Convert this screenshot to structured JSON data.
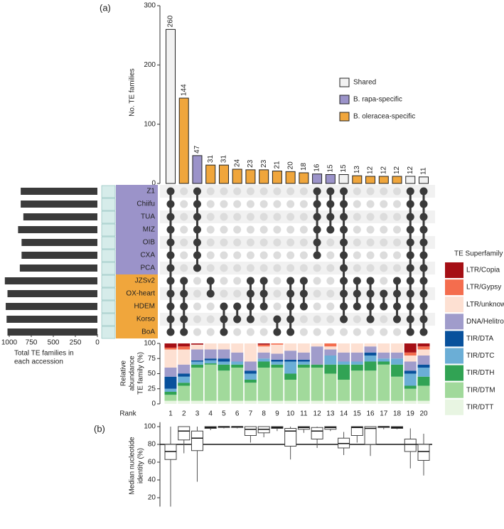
{
  "panel_labels": [
    "(a)",
    "(b)"
  ],
  "chart_data": [
    {
      "type": "bar",
      "ylabel": "No. TE families",
      "categories": [
        "1",
        "2",
        "3",
        "4",
        "5",
        "6",
        "7",
        "8",
        "9",
        "10",
        "11",
        "12",
        "13",
        "14",
        "15",
        "16",
        "17",
        "18",
        "19",
        "20"
      ],
      "values": [
        260,
        144,
        47,
        31,
        31,
        24,
        23,
        23,
        21,
        20,
        18,
        16,
        15,
        15,
        13,
        12,
        12,
        12,
        12,
        11
      ],
      "colors": [
        "#f2f2f2",
        "#f0a63c",
        "#9b93c9",
        "#f0a63c",
        "#f0a63c",
        "#f0a63c",
        "#f0a63c",
        "#f0a63c",
        "#f0a63c",
        "#f0a63c",
        "#f0a63c",
        "#9b93c9",
        "#9b93c9",
        "#f2f2f2",
        "#f0a63c",
        "#f0a63c",
        "#f0a63c",
        "#f0a63c",
        "#f2f2f2",
        "#f2f2f2"
      ],
      "ylim": [
        0,
        300
      ],
      "yticks": [
        0,
        100,
        200,
        300
      ],
      "legend": [
        {
          "name": "Shared",
          "color": "#f2f2f2"
        },
        {
          "name": "B. rapa-specific",
          "color": "#9b93c9"
        },
        {
          "name": "B. oleracea-specific",
          "color": "#f0a63c"
        }
      ]
    },
    {
      "type": "barh",
      "xlabel": [
        "Total TE families in",
        "each accession"
      ],
      "categories": [
        "Z1",
        "Chiifu",
        "TUA",
        "MIZ",
        "OIB",
        "CXA",
        "PCA",
        "JZSv2",
        "OX-heart",
        "HDEM",
        "Korso",
        "BoA"
      ],
      "values": [
        870,
        870,
        840,
        900,
        860,
        860,
        880,
        1050,
        1020,
        1040,
        1030,
        1020
      ],
      "label_colors": [
        "#9b93c9",
        "#9b93c9",
        "#9b93c9",
        "#9b93c9",
        "#9b93c9",
        "#9b93c9",
        "#9b93c9",
        "#f0a63c",
        "#f0a63c",
        "#f0a63c",
        "#f0a63c",
        "#f0a63c"
      ],
      "color": "#3a3a3a",
      "xlim": [
        0,
        1000
      ],
      "xticks": [
        1000,
        750,
        500,
        250,
        0
      ],
      "reversed": true
    },
    {
      "type": "matrix",
      "on_color": "#3a3a3a",
      "off_color": "#dcdcdc",
      "membership": [
        [
          1,
          1,
          1,
          1,
          1,
          1,
          1,
          1,
          1,
          1,
          1,
          1
        ],
        [
          0,
          0,
          0,
          0,
          0,
          0,
          0,
          1,
          1,
          1,
          1,
          1
        ],
        [
          1,
          1,
          1,
          1,
          1,
          1,
          1,
          0,
          0,
          0,
          0,
          0
        ],
        [
          0,
          0,
          0,
          0,
          0,
          0,
          0,
          1,
          1,
          0,
          0,
          0
        ],
        [
          0,
          0,
          0,
          0,
          0,
          0,
          0,
          0,
          0,
          1,
          1,
          1
        ],
        [
          0,
          0,
          0,
          0,
          0,
          0,
          0,
          0,
          0,
          1,
          1,
          0
        ],
        [
          0,
          0,
          0,
          0,
          0,
          0,
          0,
          1,
          1,
          1,
          1,
          0
        ],
        [
          0,
          0,
          0,
          0,
          0,
          0,
          0,
          1,
          1,
          1,
          0,
          0
        ],
        [
          0,
          0,
          0,
          0,
          0,
          0,
          0,
          0,
          0,
          0,
          1,
          1
        ],
        [
          0,
          0,
          0,
          0,
          0,
          0,
          0,
          1,
          1,
          1,
          1,
          1
        ],
        [
          0,
          0,
          0,
          0,
          0,
          0,
          0,
          1,
          1,
          1,
          0,
          0
        ],
        [
          1,
          1,
          1,
          1,
          1,
          1,
          0,
          0,
          0,
          0,
          0,
          0
        ],
        [
          1,
          1,
          1,
          1,
          0,
          0,
          0,
          0,
          0,
          0,
          0,
          0
        ],
        [
          1,
          1,
          1,
          1,
          1,
          1,
          1,
          1,
          1,
          1,
          1,
          0
        ],
        [
          0,
          0,
          0,
          0,
          0,
          0,
          0,
          1,
          1,
          1,
          0,
          0
        ],
        [
          0,
          0,
          0,
          0,
          0,
          0,
          0,
          1,
          1,
          1,
          1,
          0
        ],
        [
          0,
          0,
          0,
          0,
          0,
          0,
          0,
          0,
          1,
          1,
          0,
          0
        ],
        [
          0,
          0,
          0,
          0,
          0,
          0,
          0,
          1,
          1,
          1,
          1,
          0
        ],
        [
          1,
          1,
          1,
          1,
          1,
          1,
          1,
          1,
          1,
          1,
          1,
          1
        ],
        [
          1,
          1,
          1,
          1,
          1,
          1,
          1,
          1,
          1,
          1,
          1,
          1
        ]
      ]
    },
    {
      "type": "stacked_bar",
      "ylabel": [
        "Relative",
        "abundance",
        "TE family (%)"
      ],
      "xlabel": "Rank",
      "legend_title": "TE Superfamily",
      "categories": [
        "1",
        "2",
        "3",
        "4",
        "5",
        "6",
        "7",
        "8",
        "9",
        "10",
        "11",
        "12",
        "13",
        "14",
        "15",
        "16",
        "17",
        "18",
        "19",
        "20"
      ],
      "ylim": [
        0,
        100
      ],
      "yticks": [
        0,
        25,
        50,
        75,
        100
      ],
      "series": [
        {
          "name": "LTR/Copia",
          "color": "#a50f15",
          "values": [
            7,
            5,
            2,
            0,
            0,
            0,
            0,
            2,
            0,
            0,
            0,
            0,
            0,
            0,
            0,
            0,
            0,
            0,
            15,
            5
          ]
        },
        {
          "name": "LTR/Gypsy",
          "color": "#f46d4e",
          "values": [
            3,
            5,
            0,
            0,
            0,
            0,
            0,
            3,
            2,
            0,
            0,
            0,
            5,
            0,
            0,
            0,
            0,
            0,
            5,
            5
          ]
        },
        {
          "name": "LTR/unknown",
          "color": "#fde0d2",
          "values": [
            30,
            25,
            8,
            10,
            10,
            15,
            30,
            10,
            15,
            12,
            15,
            5,
            5,
            15,
            15,
            5,
            15,
            15,
            10,
            10
          ]
        },
        {
          "name": "DNA/Helitron",
          "color": "#a09ccb",
          "values": [
            15,
            15,
            18,
            15,
            15,
            15,
            15,
            10,
            10,
            15,
            12,
            30,
            10,
            15,
            15,
            10,
            10,
            10,
            15,
            15
          ]
        },
        {
          "name": "TIR/DTA",
          "color": "#08519c",
          "values": [
            20,
            5,
            2,
            3,
            5,
            0,
            5,
            0,
            3,
            3,
            3,
            0,
            0,
            0,
            0,
            5,
            0,
            0,
            5,
            5
          ]
        },
        {
          "name": "TIR/DTC",
          "color": "#6baed6",
          "values": [
            5,
            10,
            5,
            5,
            5,
            5,
            10,
            5,
            5,
            20,
            5,
            0,
            15,
            5,
            5,
            10,
            5,
            10,
            20,
            15
          ]
        },
        {
          "name": "TIR/DTH",
          "color": "#31a354",
          "values": [
            5,
            5,
            5,
            2,
            10,
            5,
            5,
            10,
            5,
            10,
            5,
            5,
            15,
            25,
            10,
            15,
            5,
            20,
            5,
            15
          ]
        },
        {
          "name": "TIR/DTM",
          "color": "#a1d99b",
          "values": [
            10,
            25,
            55,
            60,
            50,
            55,
            30,
            55,
            55,
            35,
            55,
            55,
            45,
            35,
            50,
            50,
            60,
            40,
            20,
            25
          ]
        },
        {
          "name": "TIR/DTT",
          "color": "#e8f5e2",
          "values": [
            5,
            5,
            5,
            5,
            5,
            5,
            5,
            5,
            5,
            5,
            5,
            5,
            5,
            5,
            5,
            5,
            5,
            5,
            5,
            5
          ]
        }
      ]
    },
    {
      "type": "box",
      "ylabel": [
        "Median nucleotide",
        "identity (%)"
      ],
      "ylim": [
        10,
        105
      ],
      "yticks": [
        20,
        40,
        60,
        80,
        100
      ],
      "reference": 80,
      "min": [
        10,
        70,
        38,
        96,
        98,
        98,
        82,
        88,
        95,
        63,
        93,
        76,
        95,
        68,
        82,
        67,
        97,
        97,
        53,
        45
      ],
      "q1": [
        63,
        85,
        73,
        98,
        99,
        99,
        90,
        93,
        98,
        78,
        97,
        86,
        97,
        76,
        90,
        80,
        99,
        98,
        72,
        62
      ],
      "median": [
        72,
        95,
        87,
        99,
        100,
        100,
        97,
        97,
        99,
        95,
        99,
        95,
        99,
        81,
        99,
        98,
        100,
        99,
        80,
        72
      ],
      "q3": [
        80,
        100,
        95,
        100,
        100,
        100,
        100,
        100,
        100,
        98,
        100,
        99,
        100,
        87,
        100,
        100,
        100,
        100,
        86,
        80
      ],
      "max": [
        100,
        100,
        100,
        100,
        100,
        100,
        100,
        100,
        100,
        100,
        100,
        100,
        100,
        94,
        100,
        100,
        100,
        100,
        98,
        92
      ]
    }
  ]
}
